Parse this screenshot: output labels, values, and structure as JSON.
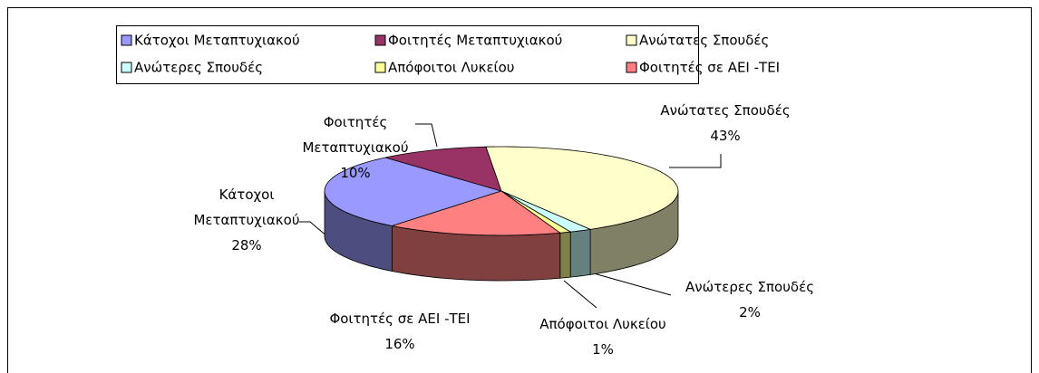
{
  "chart_data": {
    "type": "pie",
    "categories": [
      "Κάτοχοι Μεταπτυχιακού",
      "Φοιτητές Μεταπτυχιακού",
      "Ανώτατες Σπουδές",
      "Ανώτερες Σπουδές",
      "Απόφοιτοι Λυκείου",
      "Φοιτητές σε ΑΕΙ -ΤΕΙ"
    ],
    "values": [
      28,
      10,
      43,
      2,
      1,
      16
    ],
    "value_labels": [
      "28%",
      "10%",
      "43%",
      "2%",
      "1%",
      "16%"
    ],
    "colors": [
      "#9999ff",
      "#993366",
      "#ffffcc",
      "#ccffff",
      "#ffff99",
      "#ff8080"
    ],
    "legend": "top"
  }
}
